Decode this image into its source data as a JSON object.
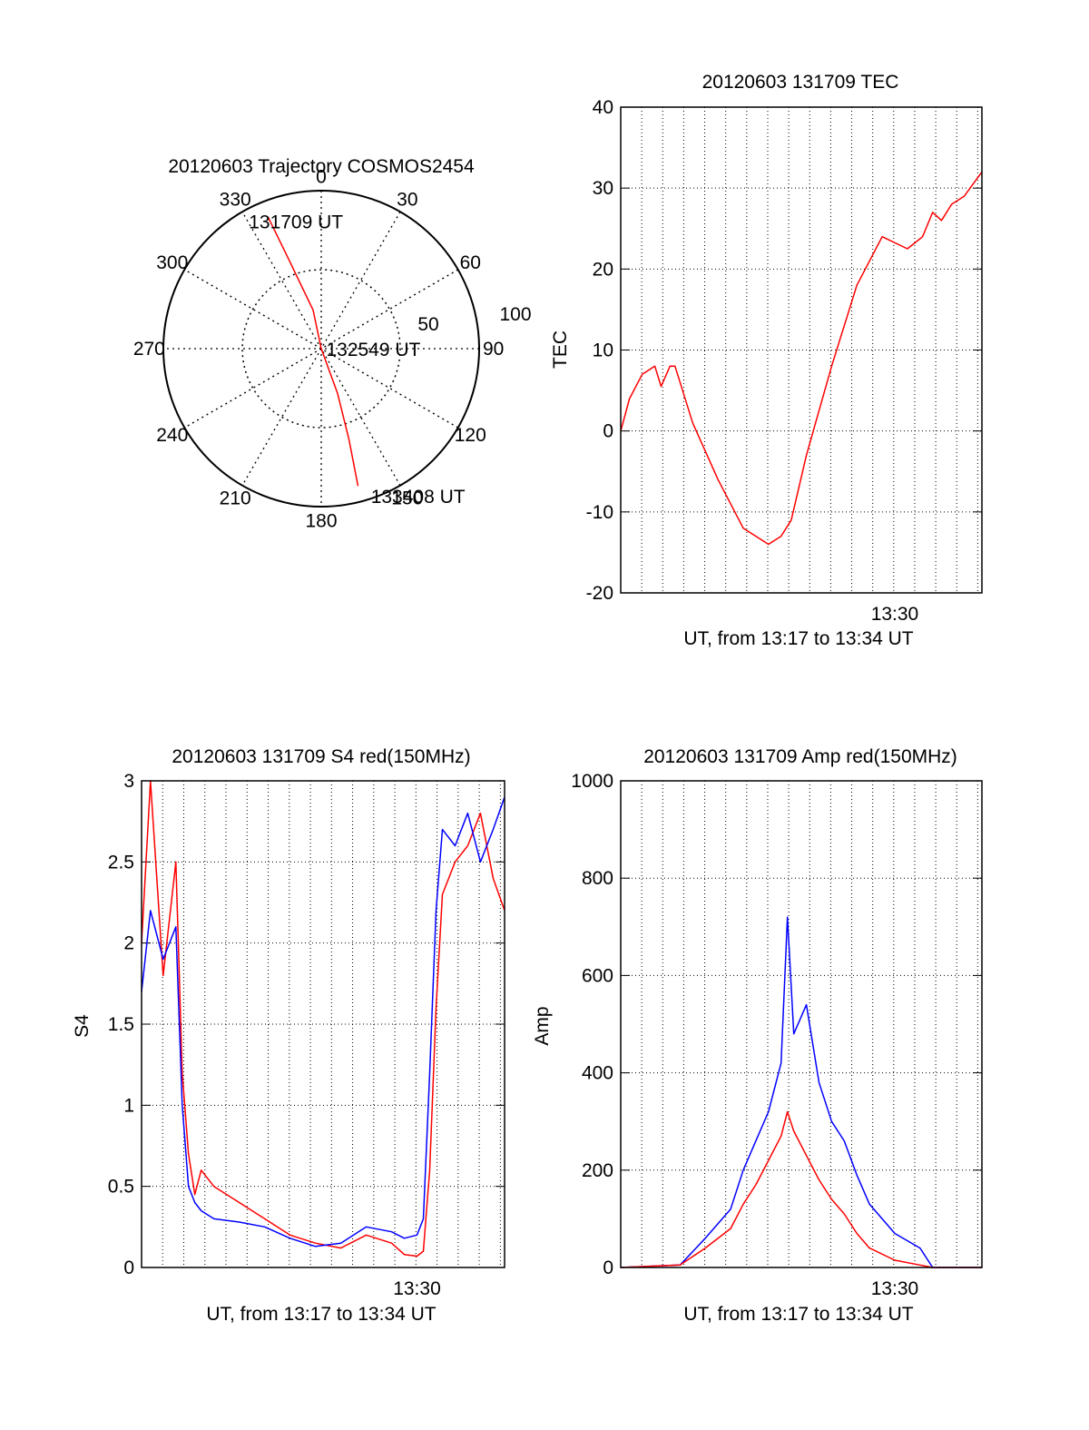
{
  "colors": {
    "red": "#ff0000",
    "blue": "#0000ff",
    "axis": "#000000"
  },
  "chart_data": [
    {
      "type": "polar",
      "title": "20120603 Trajectory COSMOS2454",
      "azimuth_labels": [
        "0",
        "30",
        "60",
        "90",
        "120",
        "150",
        "180",
        "210",
        "240",
        "270",
        "300",
        "330"
      ],
      "ring_labels": [
        "50",
        "100"
      ],
      "trajectory": [
        {
          "az": 338,
          "r": 90
        },
        {
          "az": 340,
          "r": 60
        },
        {
          "az": 348,
          "r": 25
        },
        {
          "az": 0,
          "r": 0
        },
        {
          "az": 160,
          "r": 30
        },
        {
          "az": 163,
          "r": 60
        },
        {
          "az": 165,
          "r": 90
        }
      ],
      "annotations": [
        {
          "text": "131709 UT",
          "az": 350,
          "r": 82
        },
        {
          "text": "132549 UT",
          "az": 90,
          "r": 2
        },
        {
          "text": "133408 UT",
          "az": 162,
          "r": 98
        }
      ]
    },
    {
      "type": "line",
      "title": "20120603 131709 TEC",
      "xlabel": "UT, from 13:17 to 13:34 UT",
      "ylabel": "TEC",
      "xlim": [
        13.283,
        13.569
      ],
      "ylim": [
        -20,
        40
      ],
      "yticks": [
        "-20",
        "-10",
        "0",
        "10",
        "20",
        "30",
        "40"
      ],
      "xtick": {
        "label": "13:30",
        "value": 13.5
      },
      "series": [
        {
          "color": "#ff0000",
          "x": [
            13.283,
            13.29,
            13.3,
            13.31,
            13.315,
            13.322,
            13.326,
            13.33,
            13.34,
            13.36,
            13.38,
            13.4,
            13.41,
            13.418,
            13.43,
            13.45,
            13.47,
            13.49,
            13.51,
            13.522,
            13.53,
            13.537,
            13.545,
            13.555,
            13.569
          ],
          "y": [
            0,
            4,
            7,
            8,
            5.5,
            8,
            8,
            6,
            1,
            -6,
            -12,
            -14,
            -13,
            -11,
            -3,
            8,
            18,
            24,
            22.5,
            24,
            27,
            26,
            28,
            29,
            32
          ]
        }
      ]
    },
    {
      "type": "line",
      "title": "20120603 131709 S4 red(150MHz)",
      "xlabel": "UT, from 13:17 to 13:34 UT",
      "ylabel": "S4",
      "xlim": [
        13.283,
        13.569
      ],
      "ylim": [
        0,
        3
      ],
      "yticks": [
        "0",
        "0.5",
        "1",
        "1.5",
        "2",
        "2.5",
        "3"
      ],
      "xtick": {
        "label": "13:30",
        "value": 13.5
      },
      "series": [
        {
          "color": "#ff0000",
          "x": [
            13.283,
            13.29,
            13.3,
            13.31,
            13.315,
            13.32,
            13.325,
            13.33,
            13.34,
            13.36,
            13.38,
            13.4,
            13.42,
            13.44,
            13.46,
            13.48,
            13.49,
            13.5,
            13.505,
            13.51,
            13.515,
            13.52,
            13.53,
            13.54,
            13.55,
            13.56,
            13.569
          ],
          "y": [
            2,
            3,
            1.8,
            2.5,
            1.2,
            0.7,
            0.45,
            0.6,
            0.5,
            0.4,
            0.3,
            0.2,
            0.15,
            0.12,
            0.2,
            0.15,
            0.08,
            0.07,
            0.1,
            0.6,
            1.6,
            2.3,
            2.5,
            2.6,
            2.8,
            2.4,
            2.2
          ]
        },
        {
          "color": "#0000ff",
          "x": [
            13.283,
            13.29,
            13.3,
            13.31,
            13.315,
            13.32,
            13.325,
            13.33,
            13.34,
            13.36,
            13.38,
            13.4,
            13.42,
            13.44,
            13.46,
            13.48,
            13.49,
            13.5,
            13.505,
            13.51,
            13.515,
            13.52,
            13.53,
            13.54,
            13.55,
            13.56,
            13.569
          ],
          "y": [
            1.7,
            2.2,
            1.9,
            2.1,
            1.0,
            0.5,
            0.4,
            0.35,
            0.3,
            0.28,
            0.25,
            0.18,
            0.13,
            0.15,
            0.25,
            0.22,
            0.18,
            0.2,
            0.3,
            1.2,
            2.2,
            2.7,
            2.6,
            2.8,
            2.5,
            2.7,
            2.9
          ]
        }
      ]
    },
    {
      "type": "line",
      "title": "20120603 131709 Amp red(150MHz)",
      "xlabel": "UT, from 13:17 to 13:34 UT",
      "ylabel": "Amp",
      "xlim": [
        13.283,
        13.569
      ],
      "ylim": [
        0,
        1000
      ],
      "yticks": [
        "0",
        "200",
        "400",
        "600",
        "800",
        "1000"
      ],
      "xtick": {
        "label": "13:30",
        "value": 13.5
      },
      "series": [
        {
          "color": "#0000ff",
          "x": [
            13.283,
            13.33,
            13.35,
            13.37,
            13.38,
            13.39,
            13.4,
            13.41,
            13.415,
            13.42,
            13.43,
            13.44,
            13.45,
            13.46,
            13.47,
            13.48,
            13.5,
            13.52,
            13.53,
            13.569
          ],
          "y": [
            0,
            5,
            60,
            120,
            200,
            260,
            320,
            420,
            720,
            480,
            540,
            380,
            300,
            260,
            190,
            130,
            70,
            40,
            0,
            0
          ]
        },
        {
          "color": "#ff0000",
          "x": [
            13.283,
            13.33,
            13.35,
            13.37,
            13.38,
            13.39,
            13.4,
            13.41,
            13.415,
            13.42,
            13.43,
            13.44,
            13.45,
            13.46,
            13.47,
            13.48,
            13.5,
            13.52,
            13.53,
            13.569
          ],
          "y": [
            0,
            5,
            40,
            80,
            130,
            170,
            220,
            270,
            320,
            280,
            230,
            180,
            140,
            110,
            70,
            40,
            15,
            5,
            0,
            0
          ]
        }
      ]
    }
  ]
}
